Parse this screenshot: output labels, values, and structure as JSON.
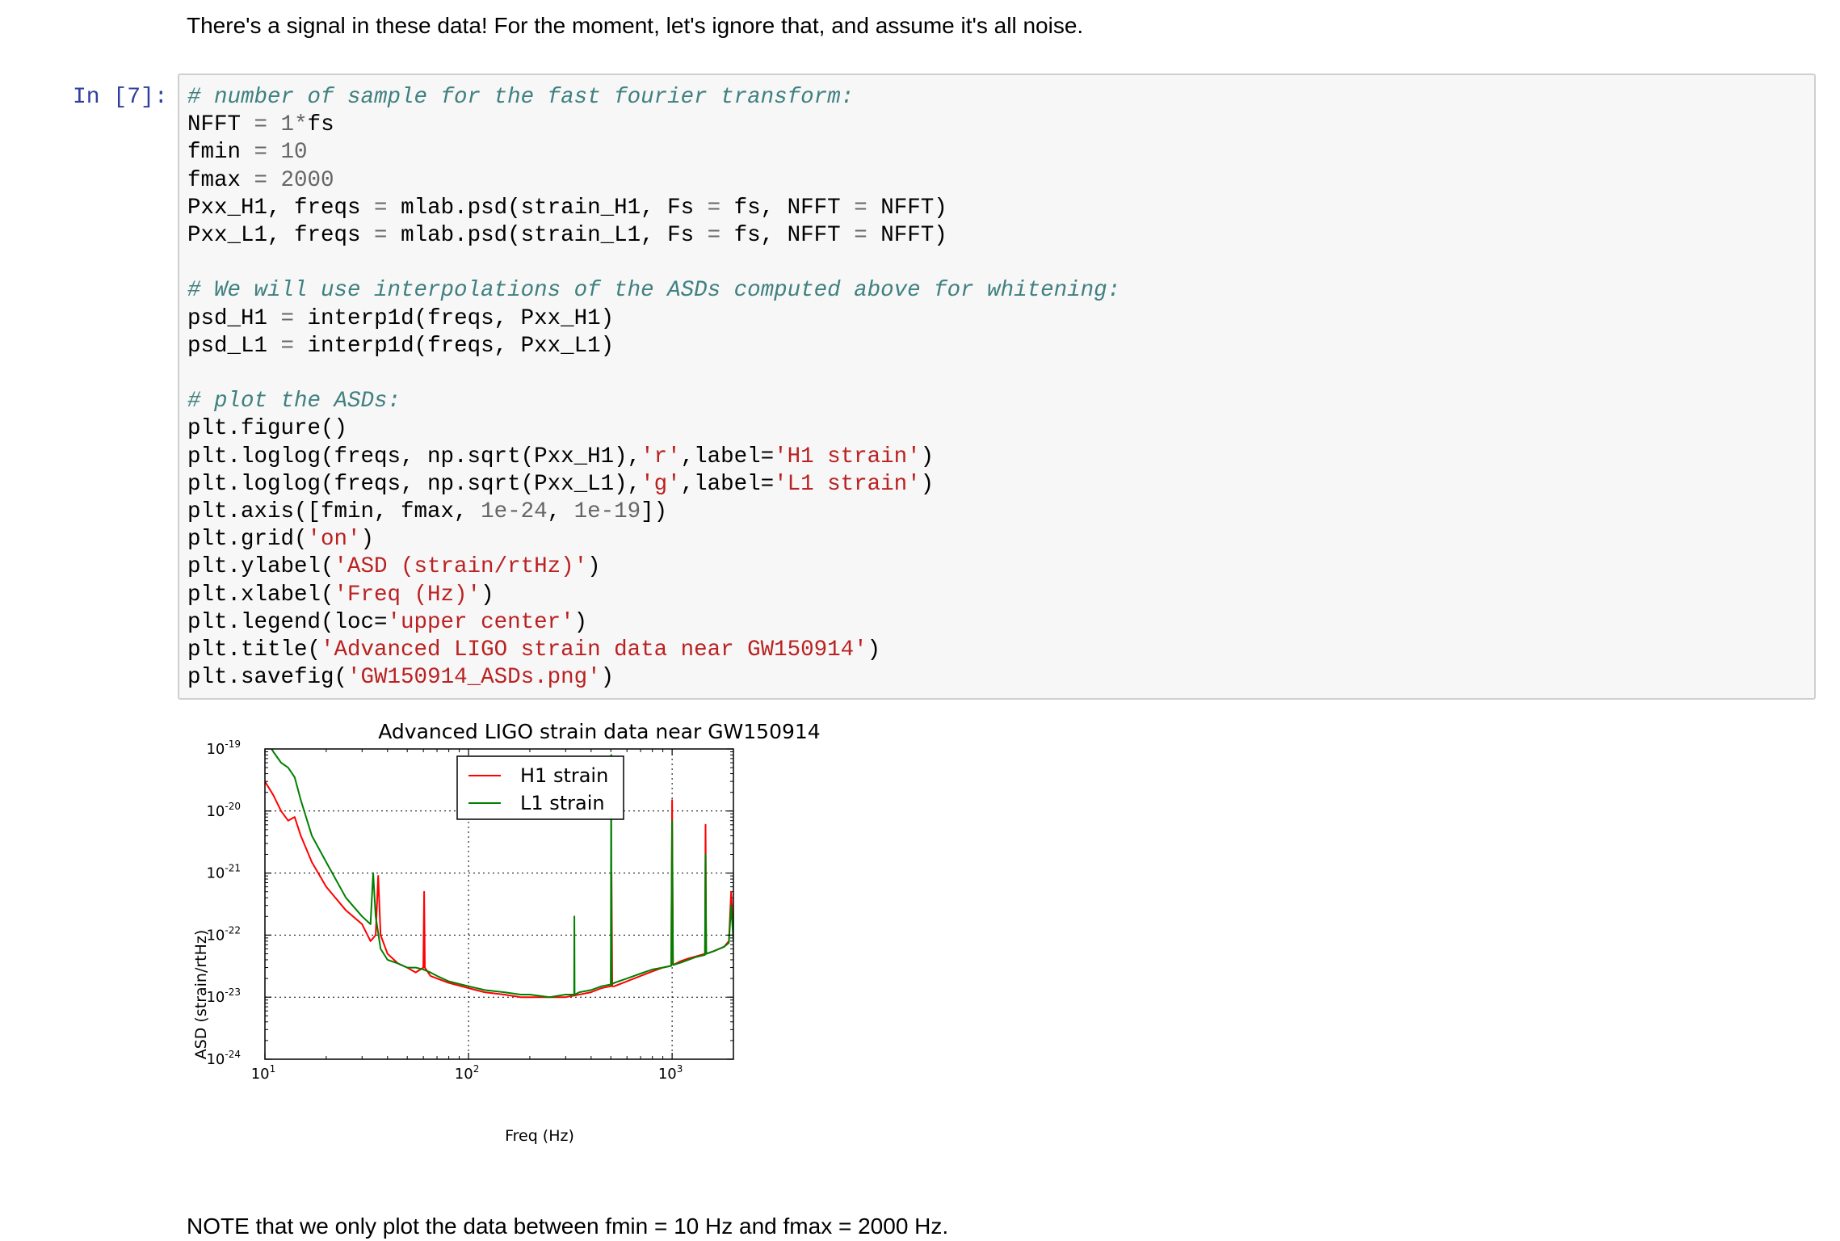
{
  "markdown_top": "There's a signal in these data! For the moment, let's ignore that, and assume it's all noise.",
  "markdown_bottom": "NOTE that we only plot the data between fmin = 10 Hz and fmax = 2000 Hz.",
  "cell": {
    "prompt": "In [7]:",
    "code_lines": [
      "# number of sample for the fast fourier transform:",
      "NFFT = 1*fs",
      "fmin = 10",
      "fmax = 2000",
      "Pxx_H1, freqs = mlab.psd(strain_H1, Fs = fs, NFFT = NFFT)",
      "Pxx_L1, freqs = mlab.psd(strain_L1, Fs = fs, NFFT = NFFT)",
      "",
      "# We will use interpolations of the ASDs computed above for whitening:",
      "psd_H1 = interp1d(freqs, Pxx_H1)",
      "psd_L1 = interp1d(freqs, Pxx_L1)",
      "",
      "# plot the ASDs:",
      "plt.figure()",
      "plt.loglog(freqs, np.sqrt(Pxx_H1),'r',label='H1 strain')",
      "plt.loglog(freqs, np.sqrt(Pxx_L1),'g',label='L1 strain')",
      "plt.axis([fmin, fmax, 1e-24, 1e-19])",
      "plt.grid('on')",
      "plt.ylabel('ASD (strain/rtHz)')",
      "plt.xlabel('Freq (Hz)')",
      "plt.legend(loc='upper center')",
      "plt.title('Advanced LIGO strain data near GW150914')",
      "plt.savefig('GW150914_ASDs.png')"
    ]
  },
  "chart_data": {
    "type": "line",
    "title": "Advanced LIGO strain data near GW150914",
    "xlabel": "Freq (Hz)",
    "ylabel": "ASD (strain/rtHz)",
    "xscale": "log",
    "yscale": "log",
    "xlim": [
      10,
      2000
    ],
    "ylim": [
      1e-24,
      1e-19
    ],
    "grid": true,
    "legend_position": "upper center",
    "x_ticks": [
      {
        "base": "10",
        "exp": "1"
      },
      {
        "base": "10",
        "exp": "2"
      },
      {
        "base": "10",
        "exp": "3"
      }
    ],
    "y_ticks": [
      {
        "base": "10",
        "exp": "-19"
      },
      {
        "base": "10",
        "exp": "-20"
      },
      {
        "base": "10",
        "exp": "-21"
      },
      {
        "base": "10",
        "exp": "-22"
      },
      {
        "base": "10",
        "exp": "-23"
      },
      {
        "base": "10",
        "exp": "-24"
      }
    ],
    "series": [
      {
        "name": "H1 strain",
        "color": "#ff0000",
        "x": [
          10,
          11,
          12,
          13,
          14,
          15,
          17,
          20,
          25,
          30,
          33,
          35,
          36,
          37,
          40,
          45,
          50,
          55,
          60,
          60.5,
          61,
          65,
          70,
          80,
          100,
          120,
          150,
          180,
          200,
          250,
          300,
          350,
          400,
          450,
          500,
          504,
          508,
          520,
          600,
          700,
          800,
          900,
          990,
          1000,
          1010,
          1100,
          1200,
          1300,
          1450,
          1460,
          1470,
          1600,
          1700,
          1800,
          1900,
          1950,
          2000
        ],
        "y": [
          3e-20,
          1.8e-20,
          1e-20,
          7e-21,
          8e-21,
          4e-21,
          1.5e-21,
          6e-22,
          2.5e-22,
          1.5e-22,
          8e-23,
          1e-22,
          9e-22,
          1e-22,
          5e-23,
          3.5e-23,
          3e-23,
          2.5e-23,
          3e-23,
          5e-22,
          3e-23,
          2.2e-23,
          2e-23,
          1.7e-23,
          1.4e-23,
          1.2e-23,
          1.1e-23,
          1e-23,
          1e-23,
          1e-23,
          1e-23,
          1.1e-23,
          1.2e-23,
          1.4e-23,
          1.5e-23,
          1e-21,
          1.5e-23,
          1.5e-23,
          1.8e-23,
          2.2e-23,
          2.6e-23,
          3e-23,
          3.2e-23,
          1.5e-20,
          3.3e-23,
          3.8e-23,
          4.2e-23,
          4.5e-23,
          5e-23,
          6e-21,
          5e-23,
          5.5e-23,
          6e-23,
          6.5e-23,
          8e-23,
          5e-22,
          9e-23
        ]
      },
      {
        "name": "L1 strain",
        "color": "#008000",
        "x": [
          10,
          11,
          12,
          13,
          14,
          15,
          17,
          20,
          25,
          30,
          33,
          34,
          35,
          37,
          40,
          45,
          50,
          55,
          60,
          65,
          70,
          80,
          100,
          120,
          150,
          180,
          200,
          250,
          300,
          330,
          331,
          332,
          350,
          400,
          450,
          500,
          502,
          504,
          520,
          600,
          700,
          800,
          900,
          990,
          1000,
          1010,
          1100,
          1200,
          1300,
          1450,
          1460,
          1470,
          1600,
          1700,
          1800,
          1900,
          1950,
          2000
        ],
        "y": [
          1.5e-19,
          9e-20,
          6e-20,
          5e-20,
          3.5e-20,
          1.5e-20,
          4e-21,
          1.5e-21,
          4e-22,
          2e-22,
          1.5e-22,
          1e-21,
          2e-22,
          6e-23,
          4e-23,
          3.5e-23,
          3e-23,
          3e-23,
          2.8e-23,
          2.5e-23,
          2.2e-23,
          1.8e-23,
          1.5e-23,
          1.3e-23,
          1.2e-23,
          1.1e-23,
          1.1e-23,
          1e-23,
          1.1e-23,
          1.1e-23,
          2e-22,
          1.1e-23,
          1.2e-23,
          1.3e-23,
          1.5e-23,
          1.6e-23,
          8e-20,
          1.6e-23,
          1.7e-23,
          2e-23,
          2.4e-23,
          2.8e-23,
          3e-23,
          3.2e-23,
          7e-21,
          3.3e-23,
          3.6e-23,
          4e-23,
          4.4e-23,
          4.8e-23,
          2e-21,
          5e-23,
          5.5e-23,
          6e-23,
          6.5e-23,
          7.5e-23,
          3e-22,
          8e-23
        ]
      }
    ]
  }
}
